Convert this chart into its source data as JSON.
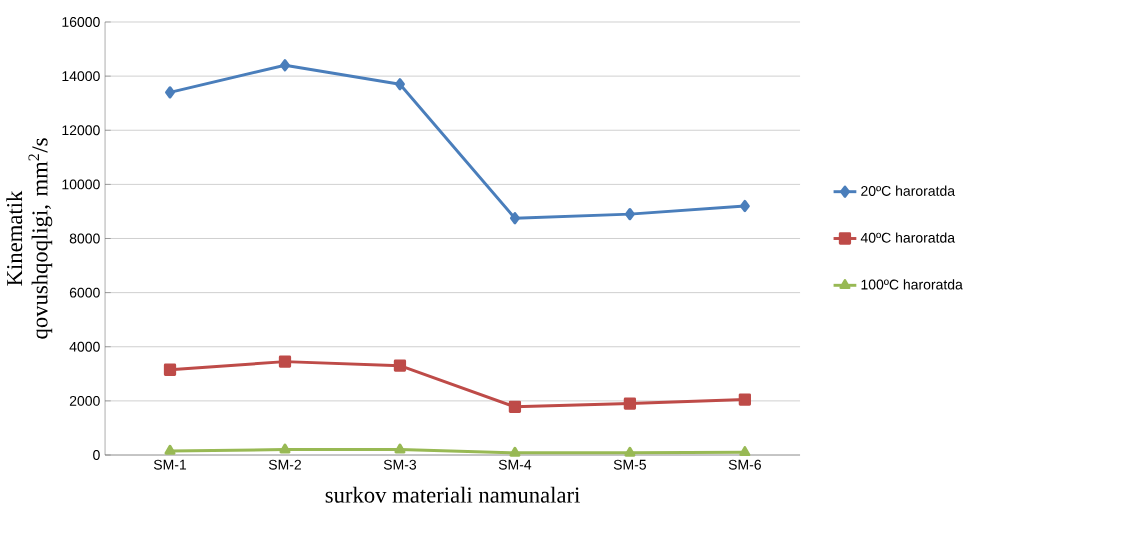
{
  "chart_data": {
    "type": "line",
    "xlabel": "surkov materiali  namunalari",
    "ylabel": "Kinematik  qovushqoqligi, mm$^{2}$/s",
    "categories": [
      "SM-1",
      "SM-2",
      "SM-3",
      "SM-4",
      "SM-5",
      "SM-6"
    ],
    "series": [
      {
        "name": "20ºC  haroratda",
        "color": "#4a7ebb",
        "marker": "diamond",
        "values": [
          13400,
          14400,
          13700,
          8750,
          8900,
          9200
        ]
      },
      {
        "name": "40ºC  haroratda",
        "color": "#be4b48",
        "marker": "square",
        "values": [
          3150,
          3450,
          3300,
          1780,
          1900,
          2050
        ]
      },
      {
        "name": "100ºC haroratda",
        "color": "#98b954",
        "marker": "triangle",
        "values": [
          150,
          200,
          200,
          80,
          80,
          100
        ]
      }
    ],
    "ylim": [
      0,
      16000
    ],
    "yticks": [
      0,
      2000,
      4000,
      6000,
      8000,
      10000,
      12000,
      14000,
      16000
    ],
    "grid": "y",
    "legend": "right"
  }
}
